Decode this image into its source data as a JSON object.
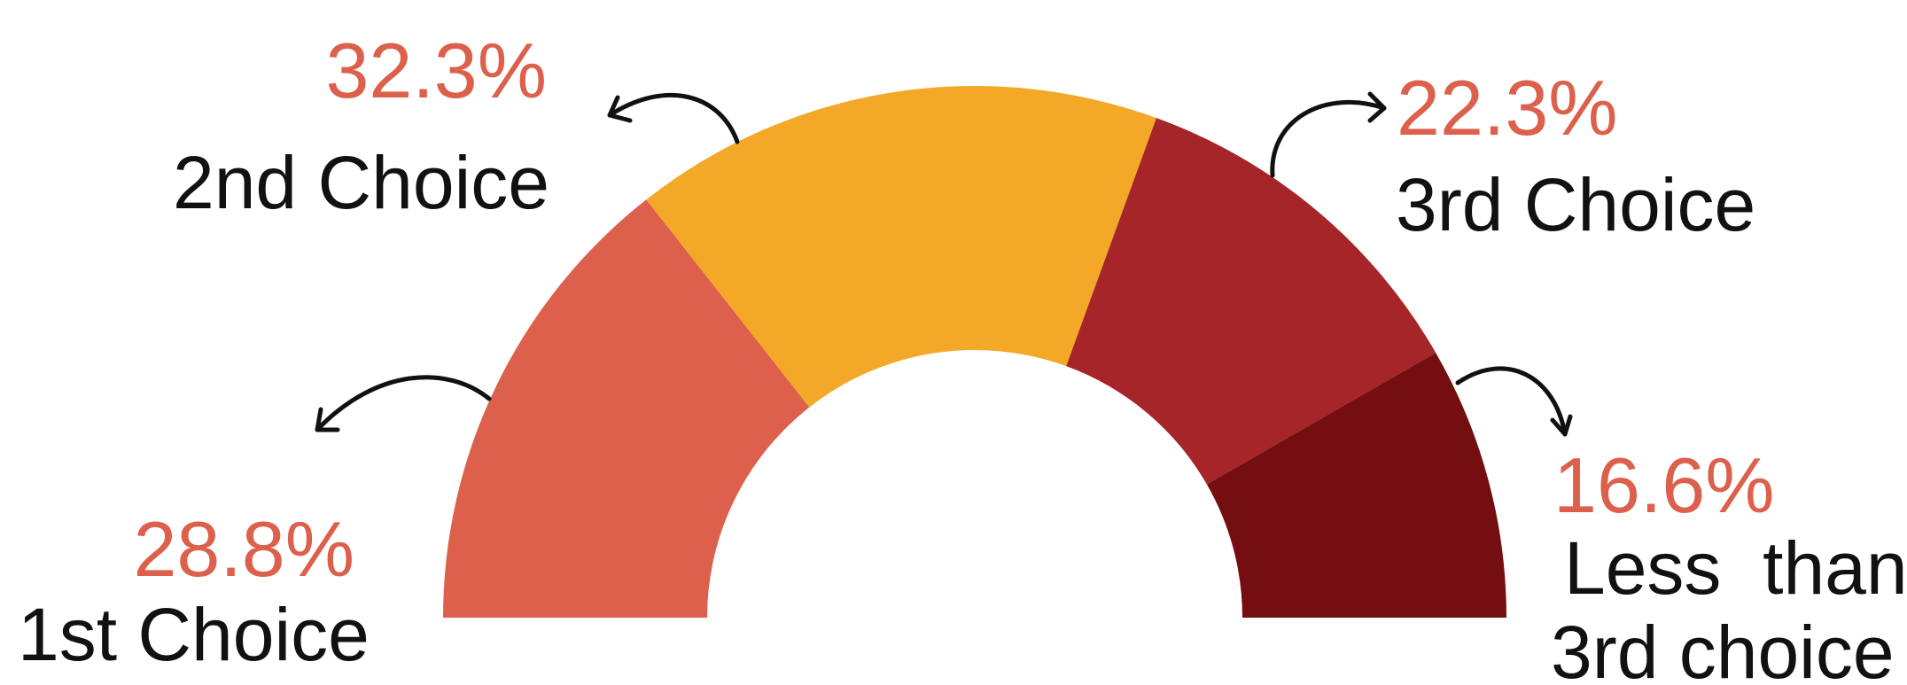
{
  "chart_data": {
    "type": "pie",
    "variant": "semi-donut",
    "slices": [
      {
        "label": "1st Choice",
        "value": 28.8,
        "value_text": "28.8%",
        "color": "#dc604b"
      },
      {
        "label": "2nd Choice",
        "value": 32.3,
        "value_text": "32.3%",
        "color": "#f4a828"
      },
      {
        "label": "3rd Choice",
        "value": 22.3,
        "value_text": "22.3%",
        "color": "#a52528"
      },
      {
        "label_lines": [
          "Less  than",
          "3rd choice"
        ],
        "value": 16.6,
        "value_text": "16.6%",
        "color": "#740e10"
      }
    ],
    "label_color": "#dc604b",
    "text_color": "#111111"
  }
}
